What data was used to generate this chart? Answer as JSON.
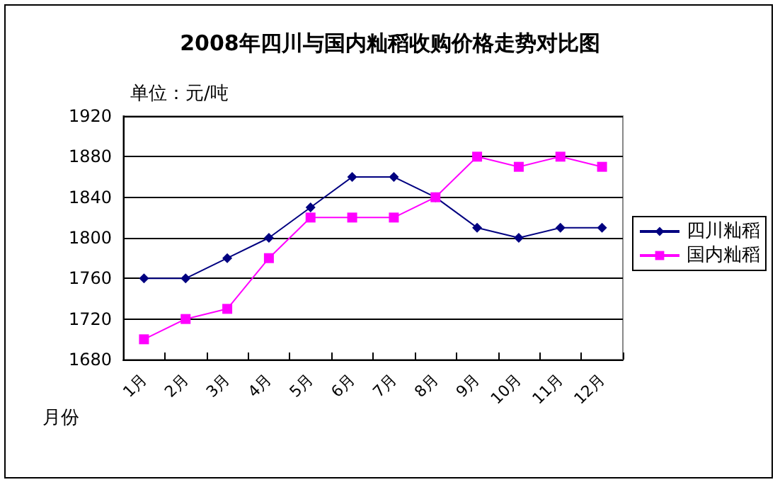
{
  "chart_data": {
    "type": "line",
    "title": "2008年四川与国内籼稻收购价格走势对比图",
    "xlabel": "月份",
    "annotations": [
      "单位：元/吨"
    ],
    "categories": [
      "1月",
      "2月",
      "3月",
      "4月",
      "5月",
      "6月",
      "7月",
      "8月",
      "9月",
      "10月",
      "11月",
      "12月"
    ],
    "series": [
      {
        "name": "四川籼稻",
        "color": "#000080",
        "marker": "diamond",
        "values": [
          1760,
          1760,
          1780,
          1800,
          1830,
          1860,
          1860,
          1840,
          1810,
          1800,
          1810,
          1810
        ]
      },
      {
        "name": "国内籼稻",
        "color": "#ff00ff",
        "marker": "square",
        "values": [
          1700,
          1720,
          1730,
          1780,
          1820,
          1820,
          1820,
          1840,
          1880,
          1870,
          1880,
          1870
        ]
      }
    ],
    "ylim": [
      1680,
      1920
    ],
    "yticks": [
      1680,
      1720,
      1760,
      1800,
      1840,
      1880,
      1920
    ],
    "grid": "y",
    "legend": "right"
  }
}
